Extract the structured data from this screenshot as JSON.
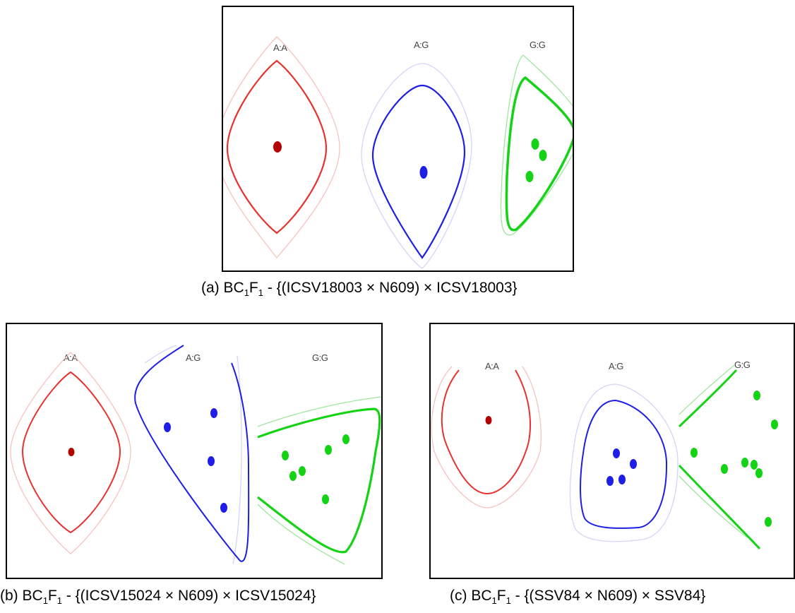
{
  "colors": {
    "AA": "#e8322e",
    "AA_dot": "#b30000",
    "AG": "#1e1ee6",
    "GG": "#14d214"
  },
  "genotype_labels": {
    "aa": "A:A",
    "ag": "A:G",
    "gg": "G:G"
  },
  "panel_a": {
    "caption_prefix": "(a) BC",
    "caption_sub1": "1",
    "caption_mid": "F",
    "caption_sub2": "1",
    "caption_rest": " - {(ICSV18003 × N609) × ICSV18003}"
  },
  "panel_b": {
    "caption_prefix": "(b) BC",
    "caption_sub1": "1",
    "caption_mid": "F",
    "caption_sub2": "1",
    "caption_rest": " - {(ICSV15024 × N609) × ICSV15024}"
  },
  "panel_c": {
    "caption_prefix": "(c) BC",
    "caption_sub1": "1",
    "caption_mid": "F",
    "caption_sub2": "1",
    "caption_rest": " - {(SSV84 × N609) × SSV84}"
  }
}
